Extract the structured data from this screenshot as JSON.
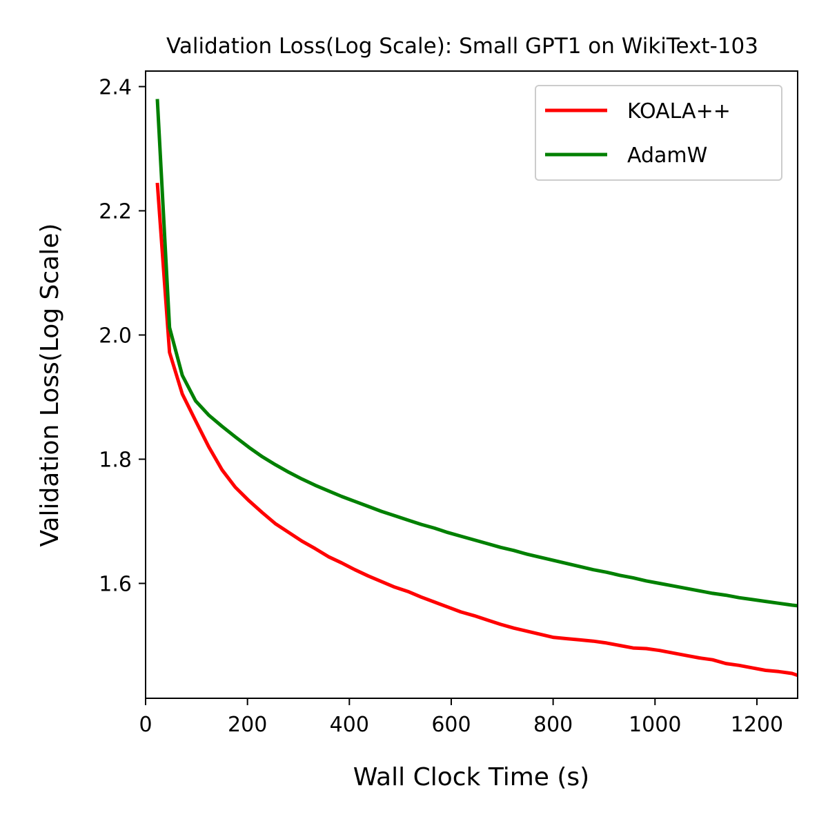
{
  "chart_data": {
    "type": "line",
    "title": "Validation Loss(Log Scale): Small GPT1 on WikiText-103",
    "xlabel": "Wall Clock Time (s)",
    "ylabel": "Validation Loss(Log Scale)",
    "xlim": [
      0,
      1280
    ],
    "ylim": [
      1.415,
      2.425
    ],
    "xticks": [
      0,
      200,
      400,
      600,
      800,
      1000,
      1200
    ],
    "yticks": [
      1.6,
      1.8,
      2.0,
      2.2,
      2.4
    ],
    "xtick_labels": [
      "0",
      "200",
      "400",
      "600",
      "800",
      "1000",
      "1200"
    ],
    "ytick_labels": [
      "1.6",
      "1.8",
      "2.0",
      "2.2",
      "2.4"
    ],
    "legend_position": "top-right",
    "series": [
      {
        "name": "KOALA++",
        "color": "#ff0000",
        "x": [
          23,
          47,
          72,
          98,
          124,
          150,
          176,
          203,
          229,
          255,
          281,
          307,
          333,
          359,
          385,
          411,
          437,
          463,
          489,
          515,
          541,
          567,
          593,
          619,
          645,
          671,
          697,
          723,
          749,
          775,
          801,
          827,
          853,
          879,
          905,
          931,
          957,
          983,
          1009,
          1035,
          1061,
          1087,
          1113,
          1139,
          1165,
          1191,
          1217,
          1243,
          1269,
          1280
        ],
        "y": [
          2.245,
          1.972,
          1.905,
          1.862,
          1.82,
          1.783,
          1.755,
          1.733,
          1.714,
          1.696,
          1.682,
          1.668,
          1.656,
          1.643,
          1.633,
          1.622,
          1.612,
          1.603,
          1.594,
          1.587,
          1.578,
          1.57,
          1.562,
          1.554,
          1.548,
          1.541,
          1.534,
          1.528,
          1.523,
          1.518,
          1.513,
          1.511,
          1.509,
          1.507,
          1.504,
          1.5,
          1.496,
          1.495,
          1.492,
          1.488,
          1.484,
          1.48,
          1.477,
          1.471,
          1.468,
          1.464,
          1.46,
          1.458,
          1.455,
          1.452
        ]
      },
      {
        "name": "AdamW",
        "color": "#008000",
        "x": [
          23,
          47,
          72,
          98,
          124,
          150,
          176,
          203,
          229,
          255,
          281,
          307,
          333,
          359,
          385,
          411,
          437,
          463,
          489,
          515,
          541,
          567,
          593,
          619,
          645,
          671,
          697,
          723,
          749,
          775,
          801,
          827,
          853,
          879,
          905,
          931,
          957,
          983,
          1009,
          1035,
          1061,
          1087,
          1113,
          1139,
          1165,
          1191,
          1217,
          1243,
          1269,
          1280
        ],
        "y": [
          2.38,
          2.012,
          1.935,
          1.894,
          1.871,
          1.853,
          1.836,
          1.819,
          1.804,
          1.791,
          1.779,
          1.768,
          1.758,
          1.749,
          1.74,
          1.732,
          1.724,
          1.716,
          1.709,
          1.702,
          1.695,
          1.689,
          1.682,
          1.676,
          1.67,
          1.664,
          1.658,
          1.653,
          1.647,
          1.642,
          1.637,
          1.632,
          1.627,
          1.622,
          1.618,
          1.613,
          1.609,
          1.604,
          1.6,
          1.596,
          1.592,
          1.588,
          1.584,
          1.581,
          1.577,
          1.574,
          1.571,
          1.568,
          1.565,
          1.564
        ]
      }
    ]
  }
}
